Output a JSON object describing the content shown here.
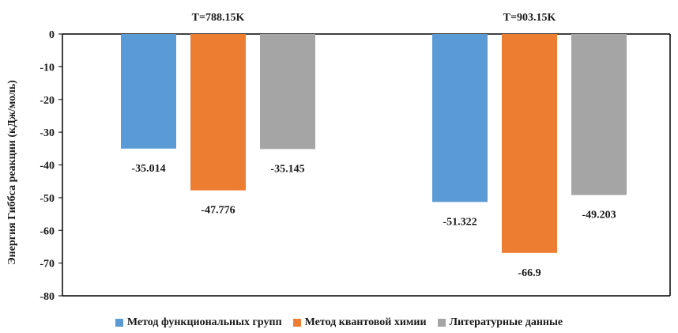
{
  "chart_data": {
    "type": "bar",
    "title": "",
    "xlabel": "",
    "ylabel": "Энергия Гиббса реакции (кДж/моль)",
    "categories": [
      "T=788.15K",
      "T=903.15K"
    ],
    "series": [
      {
        "name": "Метод функциональных групп",
        "color": "#5B9BD5",
        "values": [
          -35.014,
          -51.322
        ],
        "labels": [
          "-35.014",
          "-51.322"
        ]
      },
      {
        "name": "Метод квантовой химии",
        "color": "#ED7D31",
        "values": [
          -47.776,
          -66.9
        ],
        "labels": [
          "-47.776",
          "-66.9"
        ]
      },
      {
        "name": "Литературные данные",
        "color": "#A5A5A5",
        "values": [
          -35.145,
          -49.203
        ],
        "labels": [
          "-35.145",
          "-49.203"
        ]
      }
    ],
    "ylim": [
      -80,
      0
    ],
    "yticks": [
      "0",
      "-10",
      "-20",
      "-30",
      "-40",
      "-50",
      "-60",
      "-70",
      "-80"
    ],
    "grid": false,
    "legend": "bottom",
    "category_label_position": "top"
  }
}
